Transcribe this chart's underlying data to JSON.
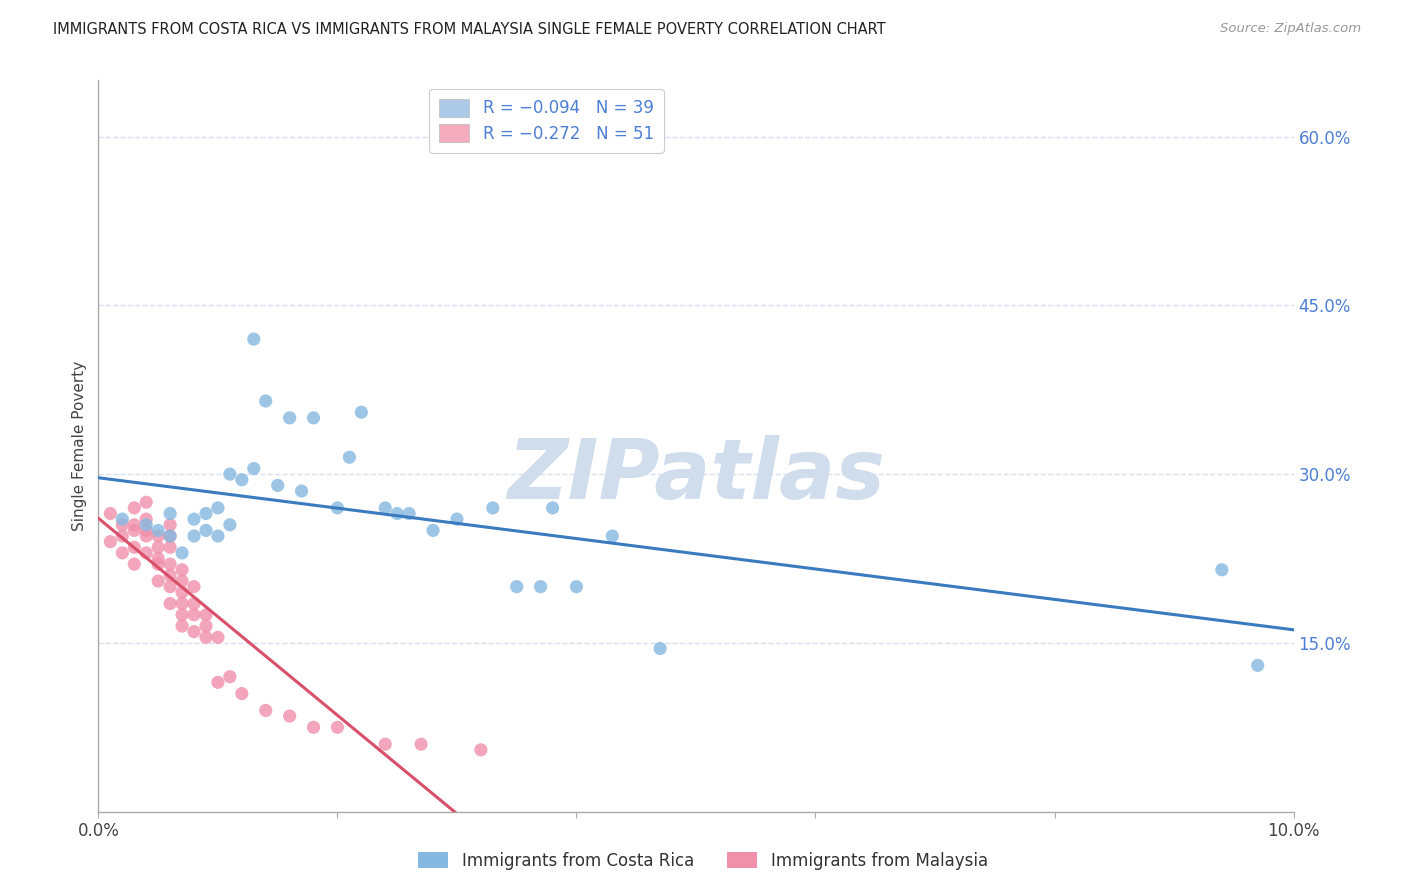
{
  "title": "IMMIGRANTS FROM COSTA RICA VS IMMIGRANTS FROM MALAYSIA SINGLE FEMALE POVERTY CORRELATION CHART",
  "source": "Source: ZipAtlas.com",
  "ylabel": "Single Female Poverty",
  "xlim": [
    0.0,
    0.1
  ],
  "ylim": [
    0.0,
    0.65
  ],
  "x_ticks": [
    0.0,
    0.02,
    0.04,
    0.06,
    0.08,
    0.1
  ],
  "x_tick_labels": [
    "0.0%",
    "",
    "",
    "",
    "",
    "10.0%"
  ],
  "y_ticks_right": [
    0.15,
    0.3,
    0.45,
    0.6
  ],
  "y_tick_labels_right": [
    "15.0%",
    "30.0%",
    "45.0%",
    "60.0%"
  ],
  "legend_label1": "R = −0.094   N = 39",
  "legend_label2": "R = −0.272   N = 51",
  "legend_color1": "#adc9e8",
  "legend_color2": "#f5abbe",
  "scatter_color1": "#85b8e0",
  "scatter_color2": "#f090aa",
  "line_color1": "#3a7bbf",
  "line_color2": "#d9506a",
  "watermark": "ZIPatlas",
  "watermark_color": "#cfdded",
  "background_color": "#ffffff",
  "grid_color": "#d8dff0",
  "title_color": "#222222",
  "right_axis_color": "#4d7fd4",
  "costa_rica_x": [
    0.002,
    0.004,
    0.005,
    0.006,
    0.006,
    0.007,
    0.008,
    0.008,
    0.009,
    0.009,
    0.01,
    0.01,
    0.011,
    0.011,
    0.012,
    0.013,
    0.013,
    0.014,
    0.015,
    0.016,
    0.017,
    0.018,
    0.02,
    0.021,
    0.022,
    0.024,
    0.025,
    0.026,
    0.028,
    0.03,
    0.033,
    0.035,
    0.037,
    0.038,
    0.04,
    0.043,
    0.047,
    0.094,
    0.097
  ],
  "costa_rica_y": [
    0.26,
    0.255,
    0.25,
    0.245,
    0.265,
    0.23,
    0.26,
    0.245,
    0.265,
    0.25,
    0.245,
    0.27,
    0.3,
    0.255,
    0.295,
    0.42,
    0.305,
    0.365,
    0.29,
    0.35,
    0.285,
    0.35,
    0.27,
    0.315,
    0.355,
    0.27,
    0.265,
    0.265,
    0.25,
    0.26,
    0.27,
    0.2,
    0.2,
    0.27,
    0.2,
    0.245,
    0.145,
    0.215,
    0.13
  ],
  "malaysia_x": [
    0.001,
    0.001,
    0.002,
    0.002,
    0.002,
    0.003,
    0.003,
    0.003,
    0.003,
    0.003,
    0.004,
    0.004,
    0.004,
    0.004,
    0.004,
    0.005,
    0.005,
    0.005,
    0.005,
    0.005,
    0.006,
    0.006,
    0.006,
    0.006,
    0.006,
    0.006,
    0.006,
    0.007,
    0.007,
    0.007,
    0.007,
    0.007,
    0.007,
    0.008,
    0.008,
    0.008,
    0.008,
    0.009,
    0.009,
    0.009,
    0.01,
    0.01,
    0.011,
    0.012,
    0.014,
    0.016,
    0.018,
    0.02,
    0.024,
    0.027,
    0.032
  ],
  "malaysia_y": [
    0.265,
    0.24,
    0.255,
    0.245,
    0.23,
    0.27,
    0.255,
    0.25,
    0.235,
    0.22,
    0.275,
    0.26,
    0.25,
    0.245,
    0.23,
    0.245,
    0.235,
    0.225,
    0.22,
    0.205,
    0.255,
    0.245,
    0.235,
    0.22,
    0.21,
    0.2,
    0.185,
    0.215,
    0.205,
    0.195,
    0.185,
    0.175,
    0.165,
    0.2,
    0.185,
    0.175,
    0.16,
    0.175,
    0.165,
    0.155,
    0.155,
    0.115,
    0.12,
    0.105,
    0.09,
    0.085,
    0.075,
    0.075,
    0.06,
    0.06,
    0.055
  ]
}
